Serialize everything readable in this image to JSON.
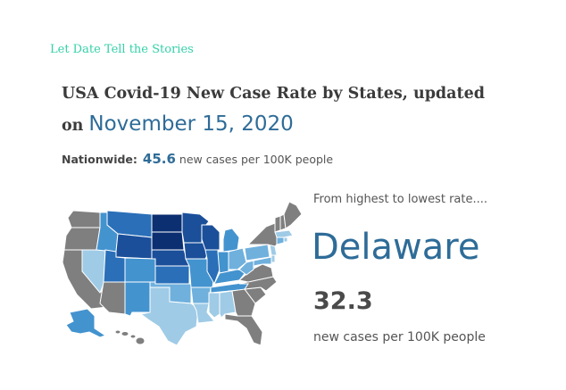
{
  "brand": "Let Date Tell the Stories",
  "title": {
    "line1": "USA Covid-19 New Case Rate by States, updated",
    "on": "on",
    "date": "November 15, 2020"
  },
  "nationwide": {
    "label": "Nationwide:",
    "value": "45.6",
    "unit": "new cases per 100K people"
  },
  "ranking": {
    "caption": "From highest to lowest rate....",
    "state": "Delaware",
    "value": "32.3",
    "unit": "new cases per 100K people"
  },
  "map": {
    "scale_colors": {
      "none": "#7f7f7f",
      "low": "#9fcbe6",
      "mid_low": "#6fb0dd",
      "mid": "#4393cf",
      "high": "#2a6fb8",
      "very_high": "#1b4f9a",
      "highest": "#0c2f72"
    },
    "states": [
      {
        "id": "WA",
        "level": "none"
      },
      {
        "id": "OR",
        "level": "none"
      },
      {
        "id": "CA",
        "level": "none"
      },
      {
        "id": "NV",
        "level": "low"
      },
      {
        "id": "ID",
        "level": "mid"
      },
      {
        "id": "MT",
        "level": "high"
      },
      {
        "id": "WY",
        "level": "very_high"
      },
      {
        "id": "UT",
        "level": "high"
      },
      {
        "id": "AZ",
        "level": "none"
      },
      {
        "id": "CO",
        "level": "mid"
      },
      {
        "id": "NM",
        "level": "mid"
      },
      {
        "id": "ND",
        "level": "highest"
      },
      {
        "id": "SD",
        "level": "highest"
      },
      {
        "id": "NE",
        "level": "very_high"
      },
      {
        "id": "KS",
        "level": "high"
      },
      {
        "id": "OK",
        "level": "mid_low"
      },
      {
        "id": "TX",
        "level": "low"
      },
      {
        "id": "MN",
        "level": "very_high"
      },
      {
        "id": "IA",
        "level": "very_high"
      },
      {
        "id": "MO",
        "level": "mid"
      },
      {
        "id": "AR",
        "level": "mid_low"
      },
      {
        "id": "LA",
        "level": "low"
      },
      {
        "id": "WI",
        "level": "very_high"
      },
      {
        "id": "IL",
        "level": "high"
      },
      {
        "id": "MI",
        "level": "mid"
      },
      {
        "id": "IN",
        "level": "mid"
      },
      {
        "id": "OH",
        "level": "mid_low"
      },
      {
        "id": "KY",
        "level": "mid"
      },
      {
        "id": "TN",
        "level": "mid"
      },
      {
        "id": "MS",
        "level": "low"
      },
      {
        "id": "AL",
        "level": "low"
      },
      {
        "id": "GA",
        "level": "none"
      },
      {
        "id": "FL",
        "level": "none"
      },
      {
        "id": "SC",
        "level": "none"
      },
      {
        "id": "NC",
        "level": "none"
      },
      {
        "id": "VA",
        "level": "none"
      },
      {
        "id": "WV",
        "level": "mid_low"
      },
      {
        "id": "PA",
        "level": "mid_low"
      },
      {
        "id": "NY",
        "level": "none"
      },
      {
        "id": "NJ",
        "level": "low"
      },
      {
        "id": "DE",
        "level": "low"
      },
      {
        "id": "MD",
        "level": "mid_low"
      },
      {
        "id": "CT",
        "level": "mid_low"
      },
      {
        "id": "RI",
        "level": "low"
      },
      {
        "id": "MA",
        "level": "low"
      },
      {
        "id": "VT",
        "level": "none"
      },
      {
        "id": "NH",
        "level": "none"
      },
      {
        "id": "ME",
        "level": "none"
      },
      {
        "id": "AK",
        "level": "mid"
      },
      {
        "id": "HI",
        "level": "none"
      }
    ]
  }
}
